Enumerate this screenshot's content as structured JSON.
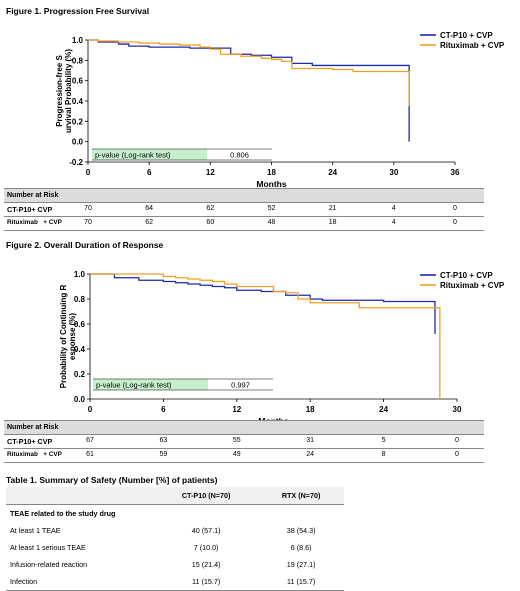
{
  "fig1": {
    "title": "Figure 1. Progression Free Survival",
    "chart_data": {
      "type": "line",
      "ylabel": "Progression-free Survival Probability (%)",
      "xlabel": "Months",
      "xlim": [
        0,
        36
      ],
      "ylim": [
        -0.2,
        1.0
      ],
      "xticks": [
        "0",
        "6",
        "12",
        "18",
        "24",
        "30",
        "36"
      ],
      "yticks": [
        "1.0",
        "0.8",
        "0.6",
        "0.4",
        "0.2",
        "0.0",
        "-0.2"
      ],
      "legend_position": "top-right",
      "pvalue_label": "p-value (Log-rank test)",
      "pvalue": "0.806",
      "series": [
        {
          "name": "CT-P10 + CVP",
          "color": "#1f2aa8",
          "x": [
            0,
            1,
            3,
            4,
            6,
            8,
            10,
            12,
            14,
            16,
            18,
            20,
            22,
            26,
            30,
            31,
            31.5,
            31.5
          ],
          "y": [
            1.0,
            0.98,
            0.96,
            0.94,
            0.93,
            0.93,
            0.92,
            0.92,
            0.86,
            0.85,
            0.83,
            0.77,
            0.75,
            0.75,
            0.75,
            0.75,
            0.75,
            0.0
          ]
        },
        {
          "name": "Rituximab + CVP",
          "color": "#f0a020",
          "x": [
            0,
            1,
            3,
            5,
            7,
            9,
            11,
            12,
            13,
            15,
            17,
            18,
            19,
            20,
            22,
            24,
            26,
            30,
            31.5,
            31.5
          ],
          "y": [
            1.0,
            0.99,
            0.98,
            0.97,
            0.96,
            0.95,
            0.93,
            0.91,
            0.86,
            0.84,
            0.82,
            0.81,
            0.79,
            0.72,
            0.72,
            0.71,
            0.69,
            0.69,
            0.69,
            0.35
          ]
        }
      ]
    },
    "risk": {
      "header": "Number at Risk",
      "rows": [
        {
          "label": "CT-P10+ CVP",
          "values": [
            "70",
            "64",
            "62",
            "52",
            "21",
            "4",
            "0"
          ]
        },
        {
          "label": "Rituximab   + CVP",
          "values": [
            "70",
            "62",
            "60",
            "48",
            "18",
            "4",
            "0"
          ]
        }
      ]
    }
  },
  "fig2": {
    "title": "Figure 2. Overall Duration of Response",
    "chart_data": {
      "type": "line",
      "ylabel": "Probability of Continuing Response (%)",
      "xlabel": "Months",
      "xlim": [
        0,
        30
      ],
      "ylim": [
        0.0,
        1.0
      ],
      "xticks": [
        "0",
        "6",
        "12",
        "18",
        "24",
        "30"
      ],
      "yticks": [
        "1.0",
        "0.8",
        "0.6",
        "0.4",
        "0.2",
        "0.0"
      ],
      "legend_position": "top-right",
      "pvalue_label": "p-value (Log-rank test)",
      "pvalue": "0.997",
      "series": [
        {
          "name": "CT-P10 + CVP",
          "color": "#1f2aa8",
          "x": [
            0,
            2,
            4,
            6,
            7,
            8,
            9,
            10,
            11,
            12,
            14,
            16,
            18,
            19,
            20,
            22,
            24,
            26,
            28,
            28.2
          ],
          "y": [
            1.0,
            0.97,
            0.95,
            0.94,
            0.93,
            0.92,
            0.91,
            0.9,
            0.89,
            0.87,
            0.86,
            0.83,
            0.8,
            0.79,
            0.79,
            0.79,
            0.78,
            0.78,
            0.78,
            0.52
          ]
        },
        {
          "name": "Rituximab + CVP",
          "color": "#f0a020",
          "x": [
            0,
            5,
            6,
            7,
            8,
            9,
            10,
            11,
            12,
            14,
            15,
            16,
            17,
            18,
            20,
            22,
            24,
            26,
            28,
            28.6
          ],
          "y": [
            1.0,
            1.0,
            0.98,
            0.97,
            0.96,
            0.95,
            0.94,
            0.92,
            0.9,
            0.9,
            0.86,
            0.85,
            0.8,
            0.77,
            0.77,
            0.73,
            0.73,
            0.73,
            0.73,
            0.0
          ]
        }
      ]
    },
    "risk": {
      "header": "Number at Risk",
      "rows": [
        {
          "label": "CT-P10+ CVP",
          "values": [
            "67",
            "63",
            "55",
            "31",
            "5",
            "0"
          ]
        },
        {
          "label": "Rituximab   + CVP",
          "values": [
            "61",
            "59",
            "49",
            "24",
            "8",
            "0"
          ]
        }
      ]
    }
  },
  "table1": {
    "title": "Table 1. Summary of Safety (Number [%] of patients)",
    "col_headers": [
      "",
      "CT-P10 (N=70)",
      "RTX (N=70)"
    ],
    "rows": [
      {
        "label": "TEAE related to the study drug",
        "c1": "",
        "c2": "",
        "bold": true
      },
      {
        "label": "At least 1 TEAE",
        "c1": "40 (57.1)",
        "c2": "38 (54.3)"
      },
      {
        "label": "At least 1 serious TEAE",
        "c1": "7 (10.0)",
        "c2": "6 (8.6)"
      },
      {
        "label": "Infusion-related reaction",
        "c1": "15 (21.4)",
        "c2": "19 (27.1)"
      },
      {
        "label": "Infection",
        "c1": "11 (15.7)",
        "c2": "11 (15.7)"
      }
    ]
  }
}
